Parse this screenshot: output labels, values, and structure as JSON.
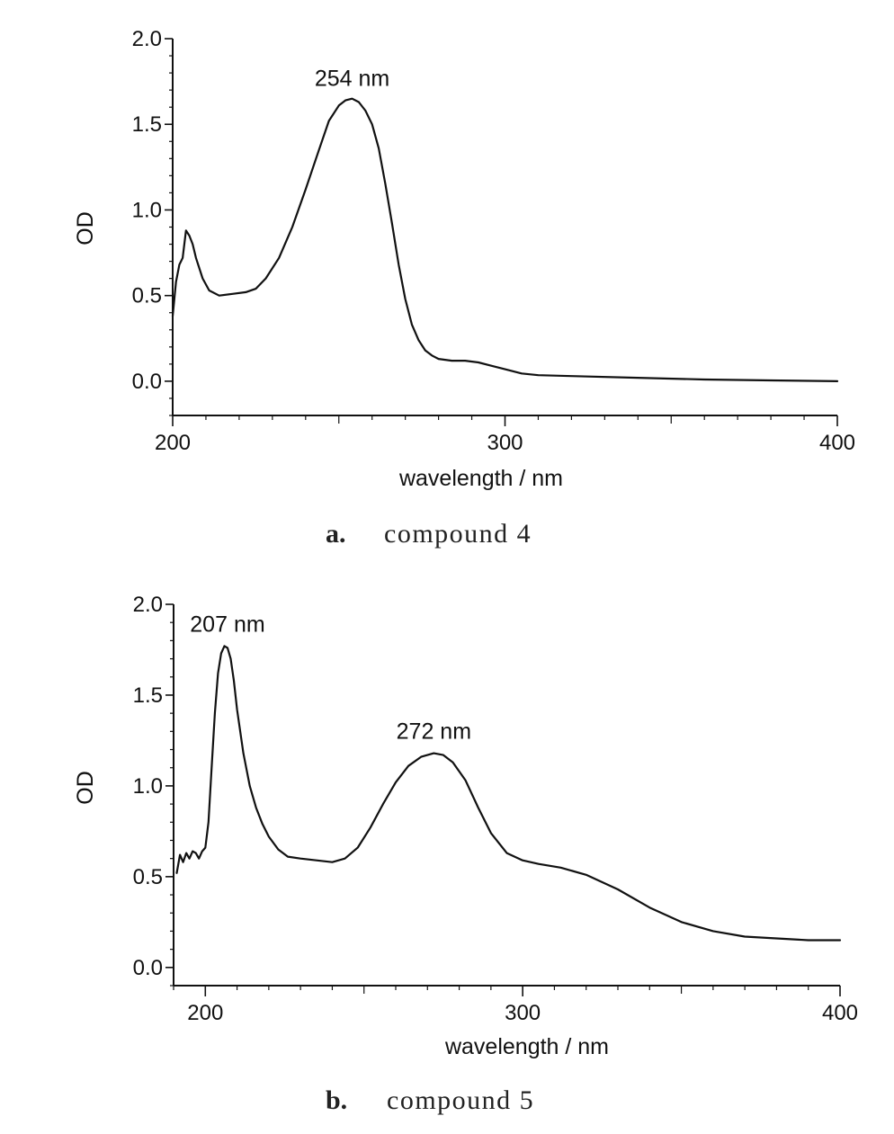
{
  "chart_data": [
    {
      "type": "line",
      "panel": "a",
      "caption_letter": "a.",
      "caption_text": "compound 4",
      "xlabel": "wavelength / nm",
      "ylabel": "OD",
      "xlim": [
        200,
        400
      ],
      "ylim": [
        -0.2,
        2.0
      ],
      "xticks": [
        200,
        300,
        400
      ],
      "yticks": [
        0.0,
        0.5,
        1.0,
        1.5,
        2.0
      ],
      "ytick_labels": [
        "0.0",
        "0.5",
        "1.0",
        "1.5",
        "2.0"
      ],
      "grid": false,
      "annotations": [
        {
          "text": "254 nm",
          "x": 254,
          "y": 1.64
        }
      ],
      "series": [
        {
          "x": [
            200,
            201,
            202,
            203,
            204,
            205,
            206,
            207,
            209,
            211,
            214,
            218,
            222,
            225,
            228,
            232,
            236,
            240,
            244,
            247,
            250,
            252,
            254,
            256,
            258,
            260,
            262,
            264,
            266,
            268,
            270,
            272,
            274,
            276,
            278,
            280,
            284,
            288,
            292,
            296,
            300,
            305,
            310,
            320,
            340,
            360,
            380,
            400
          ],
          "y": [
            0.38,
            0.58,
            0.68,
            0.72,
            0.88,
            0.85,
            0.8,
            0.72,
            0.6,
            0.53,
            0.5,
            0.51,
            0.52,
            0.54,
            0.6,
            0.72,
            0.9,
            1.12,
            1.35,
            1.52,
            1.61,
            1.64,
            1.65,
            1.63,
            1.58,
            1.5,
            1.36,
            1.15,
            0.92,
            0.68,
            0.48,
            0.33,
            0.24,
            0.18,
            0.15,
            0.13,
            0.12,
            0.12,
            0.11,
            0.09,
            0.07,
            0.045,
            0.035,
            0.03,
            0.02,
            0.01,
            0.005,
            0.0
          ]
        }
      ]
    },
    {
      "type": "line",
      "panel": "b",
      "caption_letter": "b.",
      "caption_text": "compound 5",
      "xlabel": "wavelength / nm",
      "ylabel": "OD",
      "xlim": [
        190,
        400
      ],
      "ylim": [
        -0.1,
        2.0
      ],
      "xticks": [
        200,
        300,
        400
      ],
      "yticks": [
        0.0,
        0.5,
        1.0,
        1.5,
        2.0
      ],
      "ytick_labels": [
        "0.0",
        "0.5",
        "1.0",
        "1.5",
        "2.0"
      ],
      "grid": false,
      "annotations": [
        {
          "text": "207 nm",
          "x": 207,
          "y": 1.77
        },
        {
          "text": "272 nm",
          "x": 272,
          "y": 1.18
        }
      ],
      "series": [
        {
          "x": [
            191,
            192,
            193,
            194,
            195,
            196,
            197,
            198,
            199,
            200,
            201,
            202,
            203,
            204,
            205,
            206,
            207,
            208,
            209,
            210,
            212,
            214,
            216,
            218,
            220,
            223,
            226,
            230,
            235,
            240,
            244,
            248,
            252,
            256,
            260,
            264,
            268,
            272,
            275,
            278,
            282,
            286,
            290,
            295,
            300,
            305,
            312,
            320,
            330,
            340,
            350,
            360,
            370,
            380,
            390,
            400
          ],
          "y": [
            0.52,
            0.62,
            0.58,
            0.63,
            0.6,
            0.64,
            0.63,
            0.6,
            0.64,
            0.66,
            0.8,
            1.1,
            1.4,
            1.62,
            1.73,
            1.77,
            1.76,
            1.7,
            1.58,
            1.42,
            1.18,
            1.0,
            0.88,
            0.79,
            0.72,
            0.65,
            0.61,
            0.6,
            0.59,
            0.58,
            0.6,
            0.66,
            0.77,
            0.9,
            1.02,
            1.11,
            1.16,
            1.18,
            1.17,
            1.13,
            1.03,
            0.88,
            0.74,
            0.63,
            0.59,
            0.57,
            0.55,
            0.51,
            0.43,
            0.33,
            0.25,
            0.2,
            0.17,
            0.16,
            0.15,
            0.15
          ]
        }
      ]
    }
  ]
}
